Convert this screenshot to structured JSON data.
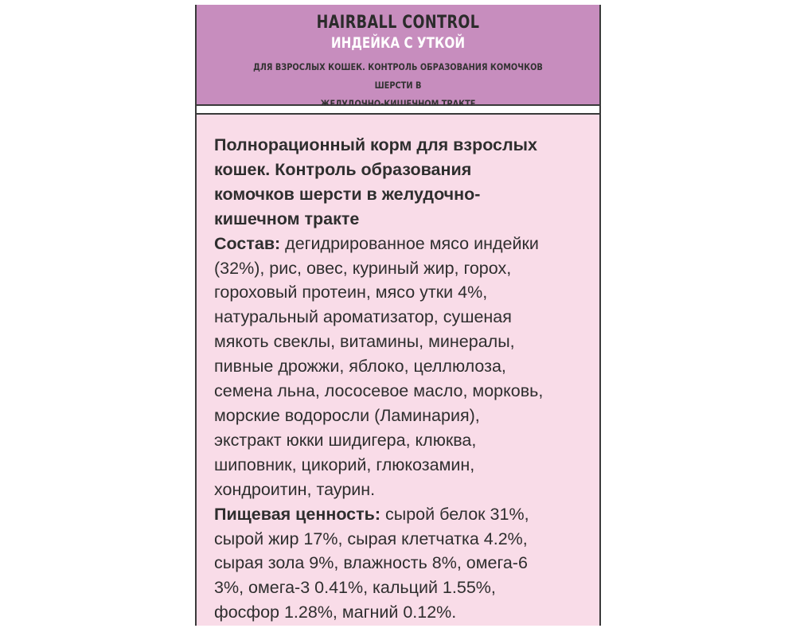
{
  "header": {
    "title": "HAIRBALL CONTROL",
    "flavor": "ИНДЕЙКА С УТКОЙ",
    "subtitle_lines": [
      "ДЛЯ ВЗРОСЛЫХ КОШЕК. КОНТРОЛЬ ОБРАЗОВАНИЯ КОМОЧКОВ ШЕРСТИ В",
      "ЖЕЛУДОЧНО-КИШЕЧНОМ ТРАКТЕ"
    ]
  },
  "colors": {
    "header_bg": "#c78dbe",
    "body_bg": "#f9dce8"
  },
  "body": {
    "lines": [
      {
        "bold": "Полнорационный корм для взрослых",
        "text": ""
      },
      {
        "bold": "кошек. Контроль образования",
        "text": ""
      },
      {
        "bold": "комочков шерсти в желудочно-",
        "text": ""
      },
      {
        "bold": "кишечном тракте",
        "text": ""
      },
      {
        "bold": "Состав:",
        "text": " дегидрированное мясо индейки"
      },
      {
        "bold": "",
        "text": "(32%), рис, овес, куриный жир, горох,"
      },
      {
        "bold": "",
        "text": "гороховый протеин, мясо утки 4%,"
      },
      {
        "bold": "",
        "text": "натуральный ароматизатор, сушеная"
      },
      {
        "bold": "",
        "text": "мякоть свеклы, витамины, минералы,"
      },
      {
        "bold": "",
        "text": "пивные дрожжи, яблоко, целлюлоза,"
      },
      {
        "bold": "",
        "text": "семена льна, лососевое масло, морковь,"
      },
      {
        "bold": "",
        "text": "морские водоросли (Ламинария),"
      },
      {
        "bold": "",
        "text": "экстракт юкки шидигера, клюква,"
      },
      {
        "bold": "",
        "text": "шиповник, цикорий, глюкозамин,"
      },
      {
        "bold": "",
        "text": "хондроитин, таурин."
      },
      {
        "bold": "Пищевая ценность:",
        "text": " сырой белок 31%,"
      },
      {
        "bold": "",
        "text": "сырой жир 17%, сырая клетчатка 4.2%,"
      },
      {
        "bold": "",
        "text": "сырая зола 9%, влажность 8%, омега-6"
      },
      {
        "bold": "",
        "text": "3%, омега-3 0.41%, кальций 1.55%,"
      },
      {
        "bold": "",
        "text": "фосфор 1.28%, магний 0.12%."
      }
    ]
  }
}
